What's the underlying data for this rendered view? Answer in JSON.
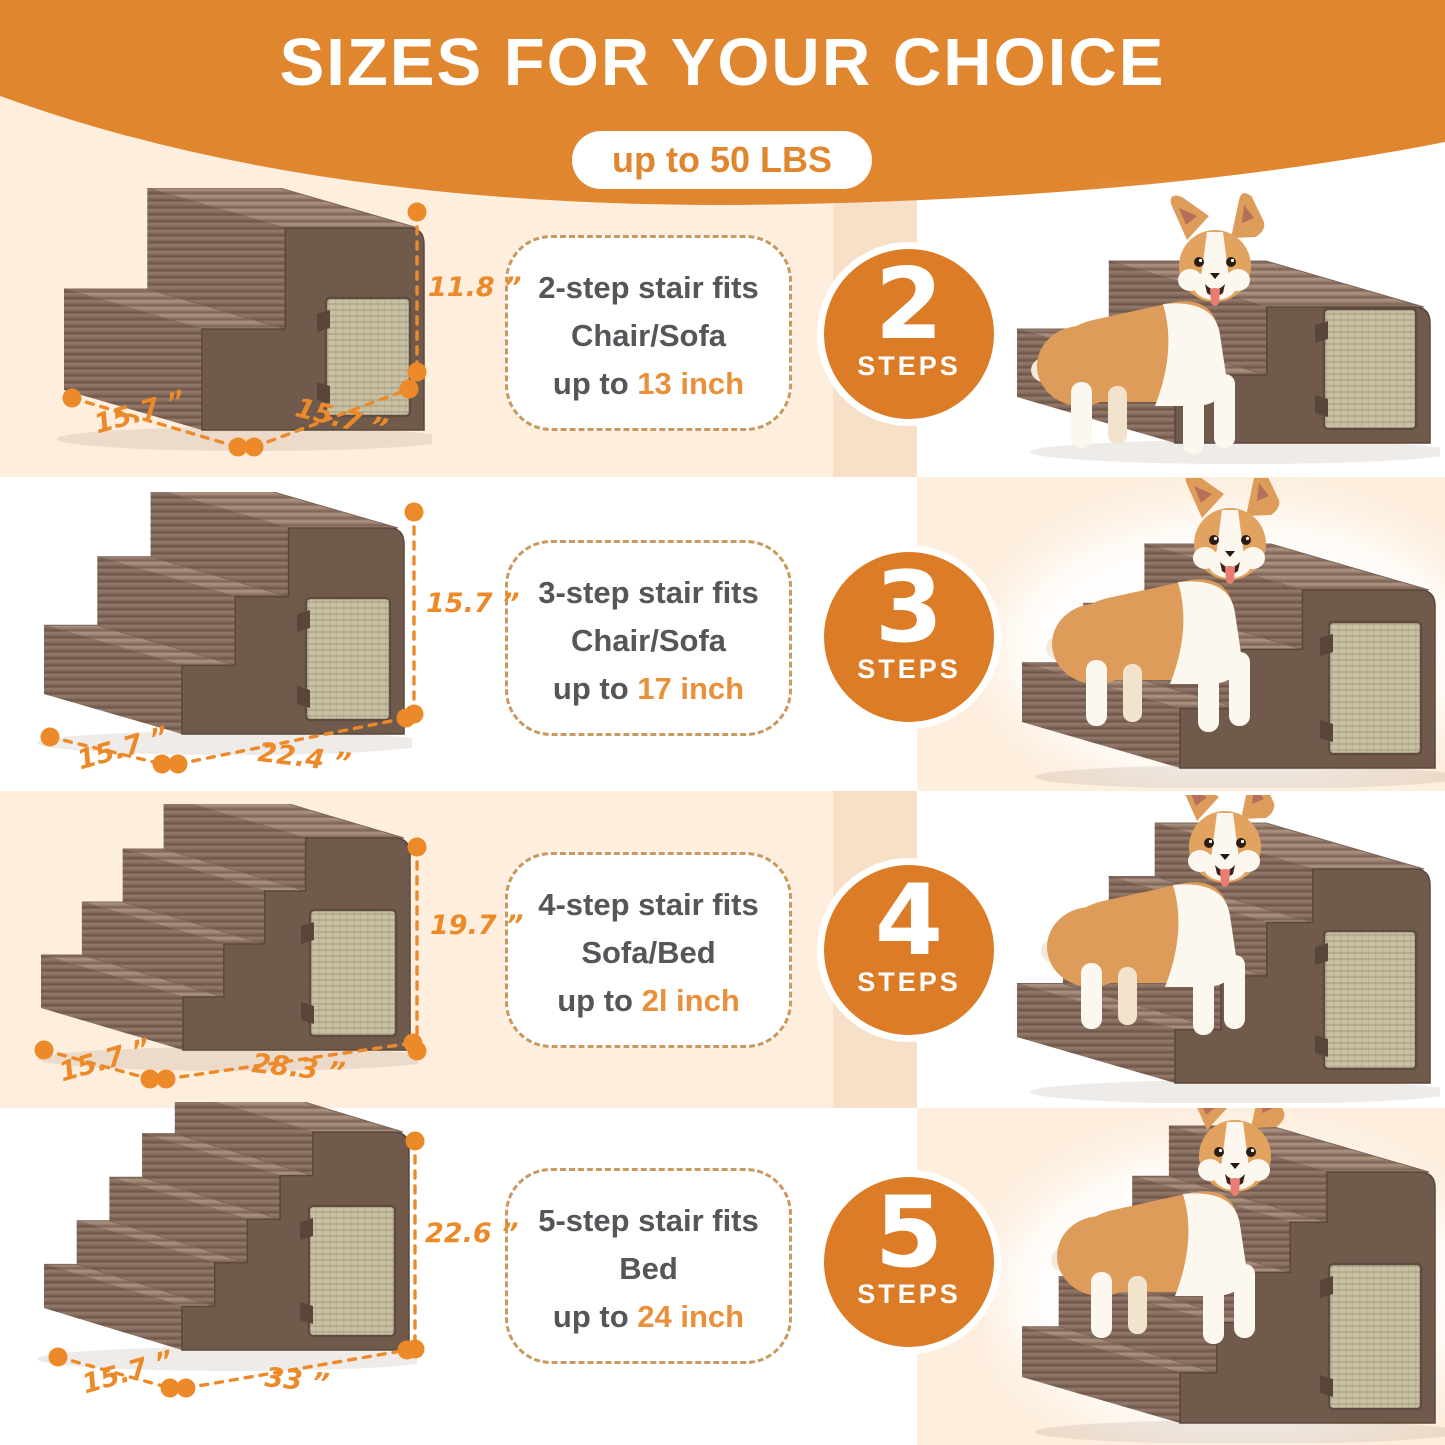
{
  "header": {
    "title": "SIZES FOR YOUR CHOICE",
    "badge": "up to 50 LBS"
  },
  "colors": {
    "banner_orange": "#e0862f",
    "circle_orange": "#dc7c26",
    "dimension_orange": "#ec8a2a",
    "highlight_orange": "#e8903a",
    "peach_background": "#fdeedd",
    "peach_band": "#f8dfc7",
    "text_gray": "#56565a",
    "dashed_border": "#c9995f"
  },
  "rows": [
    {
      "steps_number": "2",
      "steps_label": "STEPS",
      "desc_line1": "2-step stair fits",
      "desc_line2": "Chair/Sofa",
      "desc_prefix": "up to ",
      "desc_highlight": "13 inch",
      "dim_height": "11.8 ”",
      "dim_depth": "15.7 ”",
      "dim_width": "15.7 ”"
    },
    {
      "steps_number": "3",
      "steps_label": "STEPS",
      "desc_line1": "3-step stair fits",
      "desc_line2": "Chair/Sofa",
      "desc_prefix": "up to ",
      "desc_highlight": "17 inch",
      "dim_height": "15.7 ”",
      "dim_depth": "15.7 ”",
      "dim_width": "22.4 ”"
    },
    {
      "steps_number": "4",
      "steps_label": "STEPS",
      "desc_line1": "4-step stair fits",
      "desc_line2": "Sofa/Bed",
      "desc_prefix": "up to ",
      "desc_highlight": "2l inch",
      "dim_height": "19.7 ”",
      "dim_depth": "15.7 ”",
      "dim_width": "28.3 ”"
    },
    {
      "steps_number": "5",
      "steps_label": "STEPS",
      "desc_line1": "5-step stair fits",
      "desc_line2": "Bed",
      "desc_prefix": "up to ",
      "desc_highlight": "24 inch",
      "dim_height": "22.6 ”",
      "dim_depth": "15.7 ”",
      "dim_width": "33 ”"
    }
  ]
}
